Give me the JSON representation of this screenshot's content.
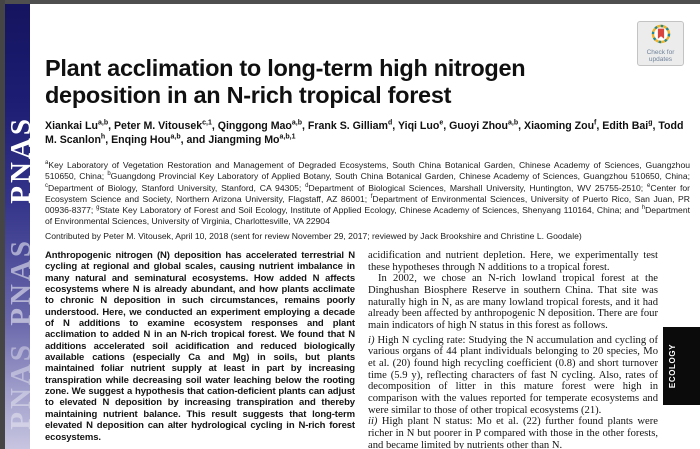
{
  "page": {
    "journal": "PNAS",
    "category": "ECOLOGY"
  },
  "badge": {
    "label_line1": "Check for",
    "label_line2": "updates"
  },
  "article": {
    "title": "Plant acclimation to long-term high nitrogen deposition in an N-rich tropical forest",
    "authors": "Xiankai Lu{a,b}, Peter M. Vitousek{c,1}, Qinggong Mao{a,b}, Frank S. Gilliam{d}, Yiqi Luo{e}, Guoyi Zhou{a,b}, Xiaoming Zou{f}, Edith Bai{g}, Todd M. Scanlon{h}, Enqing Hou{a,b}, and Jiangming Mo{a,b,1}",
    "affiliations": "{a}Key Laboratory of Vegetation Restoration and Management of Degraded Ecosystems, South China Botanical Garden, Chinese Academy of Sciences, Guangzhou 510650, China; {b}Guangdong Provincial Key Laboratory of Applied Botany, South China Botanical Garden, Chinese Academy of Sciences, Guangzhou 510650, China; {c}Department of Biology, Stanford University, Stanford, CA 94305; {d}Department of Biological Sciences, Marshall University, Huntington, WV 25755-2510; {e}Center for Ecosystem Science and Society, Northern Arizona University, Flagstaff, AZ 86001; {f}Department of Environmental Sciences, University of Puerto Rico, San Juan, PR 00936-8377; {g}State Key Laboratory of Forest and Soil Ecology, Institute of Applied Ecology, Chinese Academy of Sciences, Shenyang 110164, China; and {h}Department of Environmental Sciences, University of Virginia, Charlottesville, VA 22904",
    "contributed": "Contributed by Peter M. Vitousek, April 10, 2018 (sent for review November 29, 2017; reviewed by Jack Brookshire and Christine L. Goodale)",
    "abstract": "Anthropogenic nitrogen (N) deposition has accelerated terrestrial N cycling at regional and global scales, causing nutrient imbalance in many natural and seminatural ecosystems. How added N affects ecosystems where N is already abundant, and how plants acclimate to chronic N deposition in such circumstances, remains poorly understood. Here, we conducted an experiment employing a decade of N additions to examine ecosystem responses and plant acclimation to added N in an N-rich tropical forest. We found that N additions accelerated soil acidification and reduced biologically available cations (especially Ca and Mg) in soils, but plants maintained foliar nutrient supply at least in part by increasing transpiration while decreasing soil water leaching below the rooting zone. We suggest a hypothesis that cation-deficient plants can adjust to elevated N deposition by increasing transpiration and thereby maintaining nutrient balance. This result suggests that long-term elevated N deposition can alter hydrological cycling in N-rich forest ecosystems.",
    "body_paragraphs": [
      {
        "text": "acidification and nutrient depletion. Here, we experimentally test these hypotheses through N additions to a tropical forest."
      },
      {
        "indent": true,
        "text": "In 2002, we chose an N-rich lowland tropical forest at the Dinghushan Biosphere Reserve in southern China. That site was naturally high in N, as are many lowland tropical forests, and it had already been affected by anthropogenic N deposition. There are four main indicators of high N status in this forest as follows."
      },
      {
        "marker": "i)",
        "gap": true,
        "text": "High N cycling rate: Studying the N accumulation and cycling of various organs of 44 plant individuals belonging to 20 species, Mo et al. (20) found high recycling coefficient (0.8) and short turnover time (5.9 y), reflecting characters of fast N cycling. Also, rates of decomposition of litter in this mature forest were high in comparison with the values reported for temperate ecosystems and were similar to those of other tropical ecosystems (21)."
      },
      {
        "marker": "ii)",
        "text": "High plant N status: Mo et al. (22) further found plants were richer in N but poorer in P compared with those in the other forests, and became limited by nutrients other than N."
      }
    ]
  },
  "colors": {
    "strip_top": "#14145f",
    "strip_bottom": "#c7c5e0",
    "tab_background": "#0b0b0b",
    "badge_ring_yellow": "#f0b42c",
    "badge_ring_teal": "#1e8a96",
    "badge_bookmark_red": "#d8453e",
    "edge_gray": "#4f4f4f"
  }
}
